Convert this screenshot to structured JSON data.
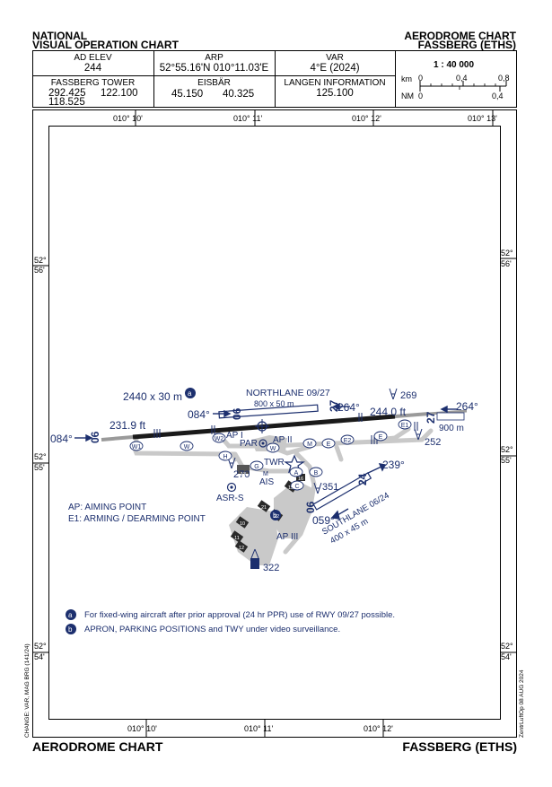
{
  "header": {
    "left_line1": "NATIONAL",
    "left_line2": "VISUAL OPERATION CHART",
    "right_line1": "AERODROME CHART",
    "right_line2": "FASSBERG (ETHS)"
  },
  "info": {
    "ad_elev_label": "AD ELEV",
    "ad_elev_value": "244",
    "arp_label": "ARP",
    "arp_value": "52°55.16'N 010°11.03'E",
    "var_label": "VAR",
    "var_value": "4°E (2024)",
    "tower_label": "FASSBERG TOWER",
    "tower_f1": "292.425",
    "tower_f2": "122.100",
    "tower_f3": "118.525",
    "eisbar_label": "EISBÄR",
    "eisbar_f1": "45.150",
    "eisbar_f2": "40.325",
    "langen_label": "LANGEN INFORMATION",
    "langen_f": "125.100",
    "scale_ratio": "1 : 40 000",
    "scale_km": "km",
    "scale_nm": "NM",
    "scale_km_0": "0",
    "scale_km_04": "0,4",
    "scale_km_08": "0,8",
    "scale_nm_0": "0",
    "scale_nm_04": "0,4"
  },
  "grid": {
    "top_ticks": [
      "010° 10'",
      "010° 11'",
      "010° 12'",
      "010° 13'"
    ],
    "bottom_ticks": [
      "010° 10'",
      "010° 11'",
      "010° 12'"
    ],
    "lat_56": [
      "52°",
      "56'"
    ],
    "lat_55": [
      "52°",
      "55'"
    ],
    "lat_54": [
      "52°",
      "54'"
    ]
  },
  "map": {
    "rwy_dims": "2440 x 30 m",
    "badge_a": "a",
    "badge_b": "b",
    "hdg_084_left": "084°",
    "ft_231": "231.9 ft",
    "rwy_06": "06",
    "hdg_084_mid": "084°",
    "rwy_06_mid": "06",
    "northlane": "NORTHLANE 09/27",
    "northlane_dims": "800 x 50 m",
    "rwy_27_mid": "27",
    "hdg_264_mid": "264°",
    "ft_244": "244.0 ft",
    "rwy_27_right": "27",
    "hdg_264_right": "264°",
    "dist_900": "900 m",
    "hdg_269": "269",
    "hdg_252": "252",
    "twy_w1": "W1",
    "twy_w": "W",
    "twy_w2": "W2",
    "ap_i": "AP I",
    "ap_ii": "AP II",
    "par": "PAR",
    "twy_m": "M",
    "twy_e": "E",
    "twy_e2": "E2",
    "twy_e_right": "E",
    "twy_e1": "E1",
    "twy_h": "H",
    "twy_g": "G",
    "twy_w_twr": "W",
    "twr": "TWR",
    "hdg_270": "270",
    "ais": "AIS",
    "ais_m": "M",
    "twy_a": "A",
    "twy_b": "B",
    "twy_c": "C",
    "hdg_351": "351",
    "hdg_239": "239°",
    "southlane": "SOUTHLANE 06/24",
    "southlane_dims": "400 x 45 m",
    "rwy_06_south": "06",
    "rwy_24_south": "24",
    "hdg_059": "059°",
    "asr": "ASR-S",
    "ap_iii": "AP III",
    "hdg_322": "322",
    "legend_ap": "AP: AIMING POINT",
    "legend_e1": "E1: ARMING / DEARMING POINT",
    "note_a": "For fixed-wing aircraft after prior approval (24 hr PPR) use of RWY 09/27 possible.",
    "note_b": "APRON, PARKING POSITIONS and TWY under video surveillance.",
    "bldg_13": "13",
    "stand_10": "10",
    "stand_11": "11",
    "stand_12": "12",
    "stand_15": "15",
    "stand_16": "16",
    "stand_21": "21",
    "stand_22": "22"
  },
  "side": {
    "left": "CHANGE: VAR, MAG BRG (141/24)",
    "right": "ZentrLuftOp 08 AUG 2024"
  },
  "footer": {
    "left": "AERODROME CHART",
    "right": "FASSBERG (ETHS)"
  },
  "colors": {
    "chart_blue": "#1c2f6e",
    "pavement": "#c9c9c9",
    "runway": "#222222"
  }
}
